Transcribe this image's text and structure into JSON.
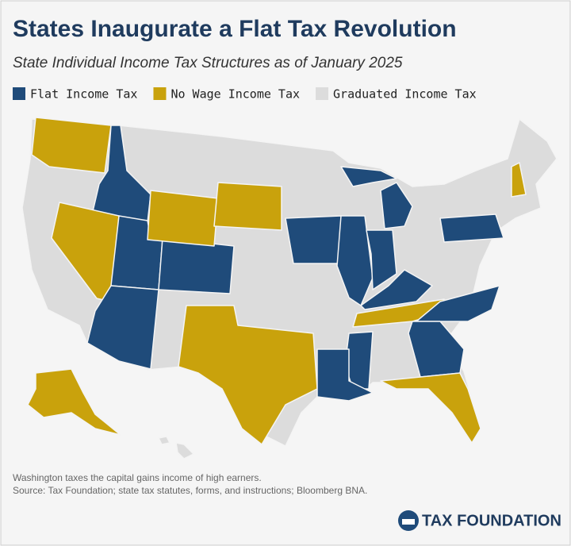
{
  "title": "States Inaugurate a Flat Tax Revolution",
  "subtitle": "State Individual Income Tax Structures as of January 2025",
  "legend": [
    {
      "label": "Flat Income Tax",
      "color": "#1f4b7a"
    },
    {
      "label": "No Wage Income Tax",
      "color": "#c9a20c"
    },
    {
      "label": "Graduated Income Tax",
      "color": "#dcdcdc"
    }
  ],
  "notes": [
    "Washington taxes the capital gains income of high earners.",
    "Source: Tax Foundation; state tax statutes, forms, and instructions; Bloomberg BNA."
  ],
  "logo": "TAX FOUNDATION"
}
